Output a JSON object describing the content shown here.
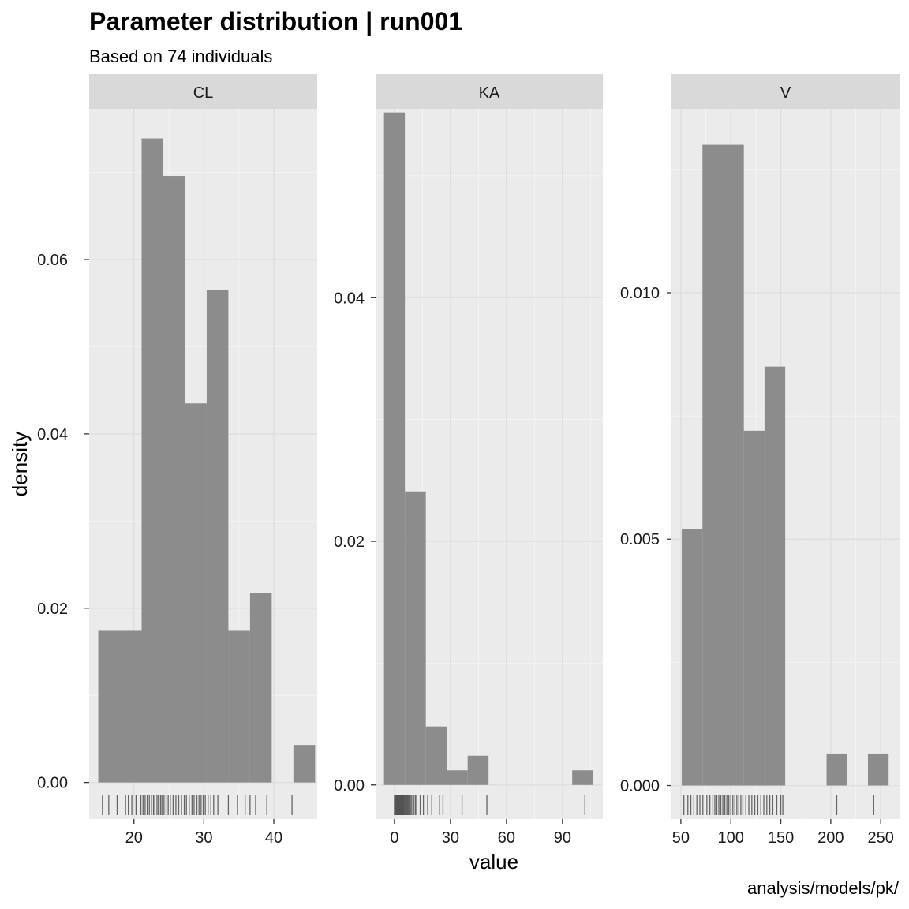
{
  "chart_data": {
    "type": "bar",
    "subtype": "faceted histogram with rug",
    "title": "Parameter distribution | run001",
    "subtitle": "Based on 74 individuals",
    "xlabel": "value",
    "ylabel": "density",
    "caption": "analysis/models/pk/",
    "bar_color": "#8a8a8a",
    "panel_background": "#ebebeb",
    "strip_background": "#d9d9d9",
    "grid": true,
    "facets": [
      {
        "label": "CL",
        "xlim": [
          13.6,
          46.2
        ],
        "ylim": [
          -0.0042,
          0.0773
        ],
        "x_ticks": [
          20,
          30,
          40
        ],
        "y_ticks": [
          0.0,
          0.02,
          0.04,
          0.06
        ],
        "y_tick_labels": [
          "0.00",
          "0.02",
          "0.04",
          "0.06"
        ],
        "bins": [
          {
            "x0": 14.9,
            "x1": 21.1,
            "density": 0.0174
          },
          {
            "x0": 21.1,
            "x1": 24.2,
            "density": 0.0739
          },
          {
            "x0": 24.2,
            "x1": 27.3,
            "density": 0.0696
          },
          {
            "x0": 27.3,
            "x1": 30.4,
            "density": 0.0435
          },
          {
            "x0": 30.4,
            "x1": 33.5,
            "density": 0.0565
          },
          {
            "x0": 33.5,
            "x1": 36.6,
            "density": 0.0174
          },
          {
            "x0": 36.6,
            "x1": 39.7,
            "density": 0.0217
          },
          {
            "x0": 39.7,
            "x1": 42.8,
            "density": 0.0
          },
          {
            "x0": 42.8,
            "x1": 45.9,
            "density": 0.0043
          }
        ],
        "rug": [
          15.5,
          16.4,
          17.6,
          18.8,
          19.2,
          19.7,
          20.3,
          21.0,
          21.3,
          21.6,
          21.9,
          22.2,
          22.5,
          22.8,
          23.0,
          23.3,
          23.5,
          23.8,
          24.0,
          24.3,
          24.6,
          24.9,
          25.2,
          25.6,
          26.0,
          26.4,
          26.8,
          27.2,
          27.5,
          27.9,
          28.3,
          28.6,
          29.0,
          29.3,
          29.6,
          29.9,
          30.2,
          30.6,
          31.0,
          31.4,
          32.0,
          33.5,
          34.8,
          35.9,
          36.6,
          37.4,
          39.0,
          42.6
        ]
      },
      {
        "label": "KA",
        "xlim": [
          -10.1,
          111.6
        ],
        "ylim": [
          -0.0028,
          0.0555
        ],
        "x_ticks": [
          0,
          30,
          60,
          90
        ],
        "y_ticks": [
          0.0,
          0.02,
          0.04
        ],
        "y_tick_labels": [
          "0.00",
          "0.02",
          "0.04"
        ],
        "bins": [
          {
            "x0": -5.6,
            "x1": 5.6,
            "density": 0.0552
          },
          {
            "x0": 5.6,
            "x1": 16.8,
            "density": 0.0241
          },
          {
            "x0": 16.8,
            "x1": 28.0,
            "density": 0.0048
          },
          {
            "x0": 28.0,
            "x1": 39.2,
            "density": 0.0012
          },
          {
            "x0": 39.2,
            "x1": 50.4,
            "density": 0.0024
          },
          {
            "x0": 50.4,
            "x1": 61.6,
            "density": 0.0
          },
          {
            "x0": 61.6,
            "x1": 72.8,
            "density": 0.0
          },
          {
            "x0": 72.8,
            "x1": 84.0,
            "density": 0.0
          },
          {
            "x0": 84.0,
            "x1": 95.2,
            "density": 0.0
          },
          {
            "x0": 95.2,
            "x1": 106.4,
            "density": 0.0012
          }
        ],
        "rug": [
          0.0,
          0.3,
          0.6,
          0.9,
          1.2,
          1.5,
          1.8,
          2.1,
          2.4,
          2.7,
          3.0,
          3.3,
          3.6,
          3.9,
          4.2,
          4.5,
          4.8,
          5.1,
          5.4,
          5.8,
          6.2,
          6.6,
          7.0,
          7.4,
          7.9,
          8.4,
          9.0,
          9.8,
          10.5,
          11.3,
          12.0,
          13.8,
          15.5,
          17.8,
          20.0,
          24.2,
          26.0,
          36.2,
          49.5,
          102.0
        ]
      },
      {
        "label": "V",
        "xlim": [
          40.6,
          268.8
        ],
        "ylim": [
          -0.00068,
          0.01373
        ],
        "x_ticks": [
          50,
          100,
          150,
          200,
          250
        ],
        "y_ticks": [
          0.0,
          0.005,
          0.01
        ],
        "y_tick_labels": [
          "0.000",
          "0.005",
          "0.010"
        ],
        "bins": [
          {
            "x0": 50.9,
            "x1": 71.6,
            "density": 0.0052
          },
          {
            "x0": 71.6,
            "x1": 92.3,
            "density": 0.013
          },
          {
            "x0": 92.3,
            "x1": 113.0,
            "density": 0.013
          },
          {
            "x0": 113.0,
            "x1": 133.7,
            "density": 0.0072
          },
          {
            "x0": 133.7,
            "x1": 154.4,
            "density": 0.0085
          },
          {
            "x0": 154.4,
            "x1": 175.1,
            "density": 0.0
          },
          {
            "x0": 175.1,
            "x1": 195.8,
            "density": 0.0
          },
          {
            "x0": 195.8,
            "x1": 216.5,
            "density": 0.00065
          },
          {
            "x0": 216.5,
            "x1": 237.2,
            "density": 0.0
          },
          {
            "x0": 237.2,
            "x1": 257.9,
            "density": 0.00065
          }
        ],
        "rug": [
          53,
          57,
          60,
          63,
          66,
          69,
          72,
          76,
          79,
          82,
          84,
          86,
          88,
          90,
          92,
          94,
          96,
          98,
          100,
          102,
          104,
          106,
          108,
          110,
          112,
          115,
          118,
          121,
          124,
          127,
          130,
          133,
          136,
          139,
          142,
          146,
          150,
          152,
          206,
          243
        ]
      }
    ]
  }
}
